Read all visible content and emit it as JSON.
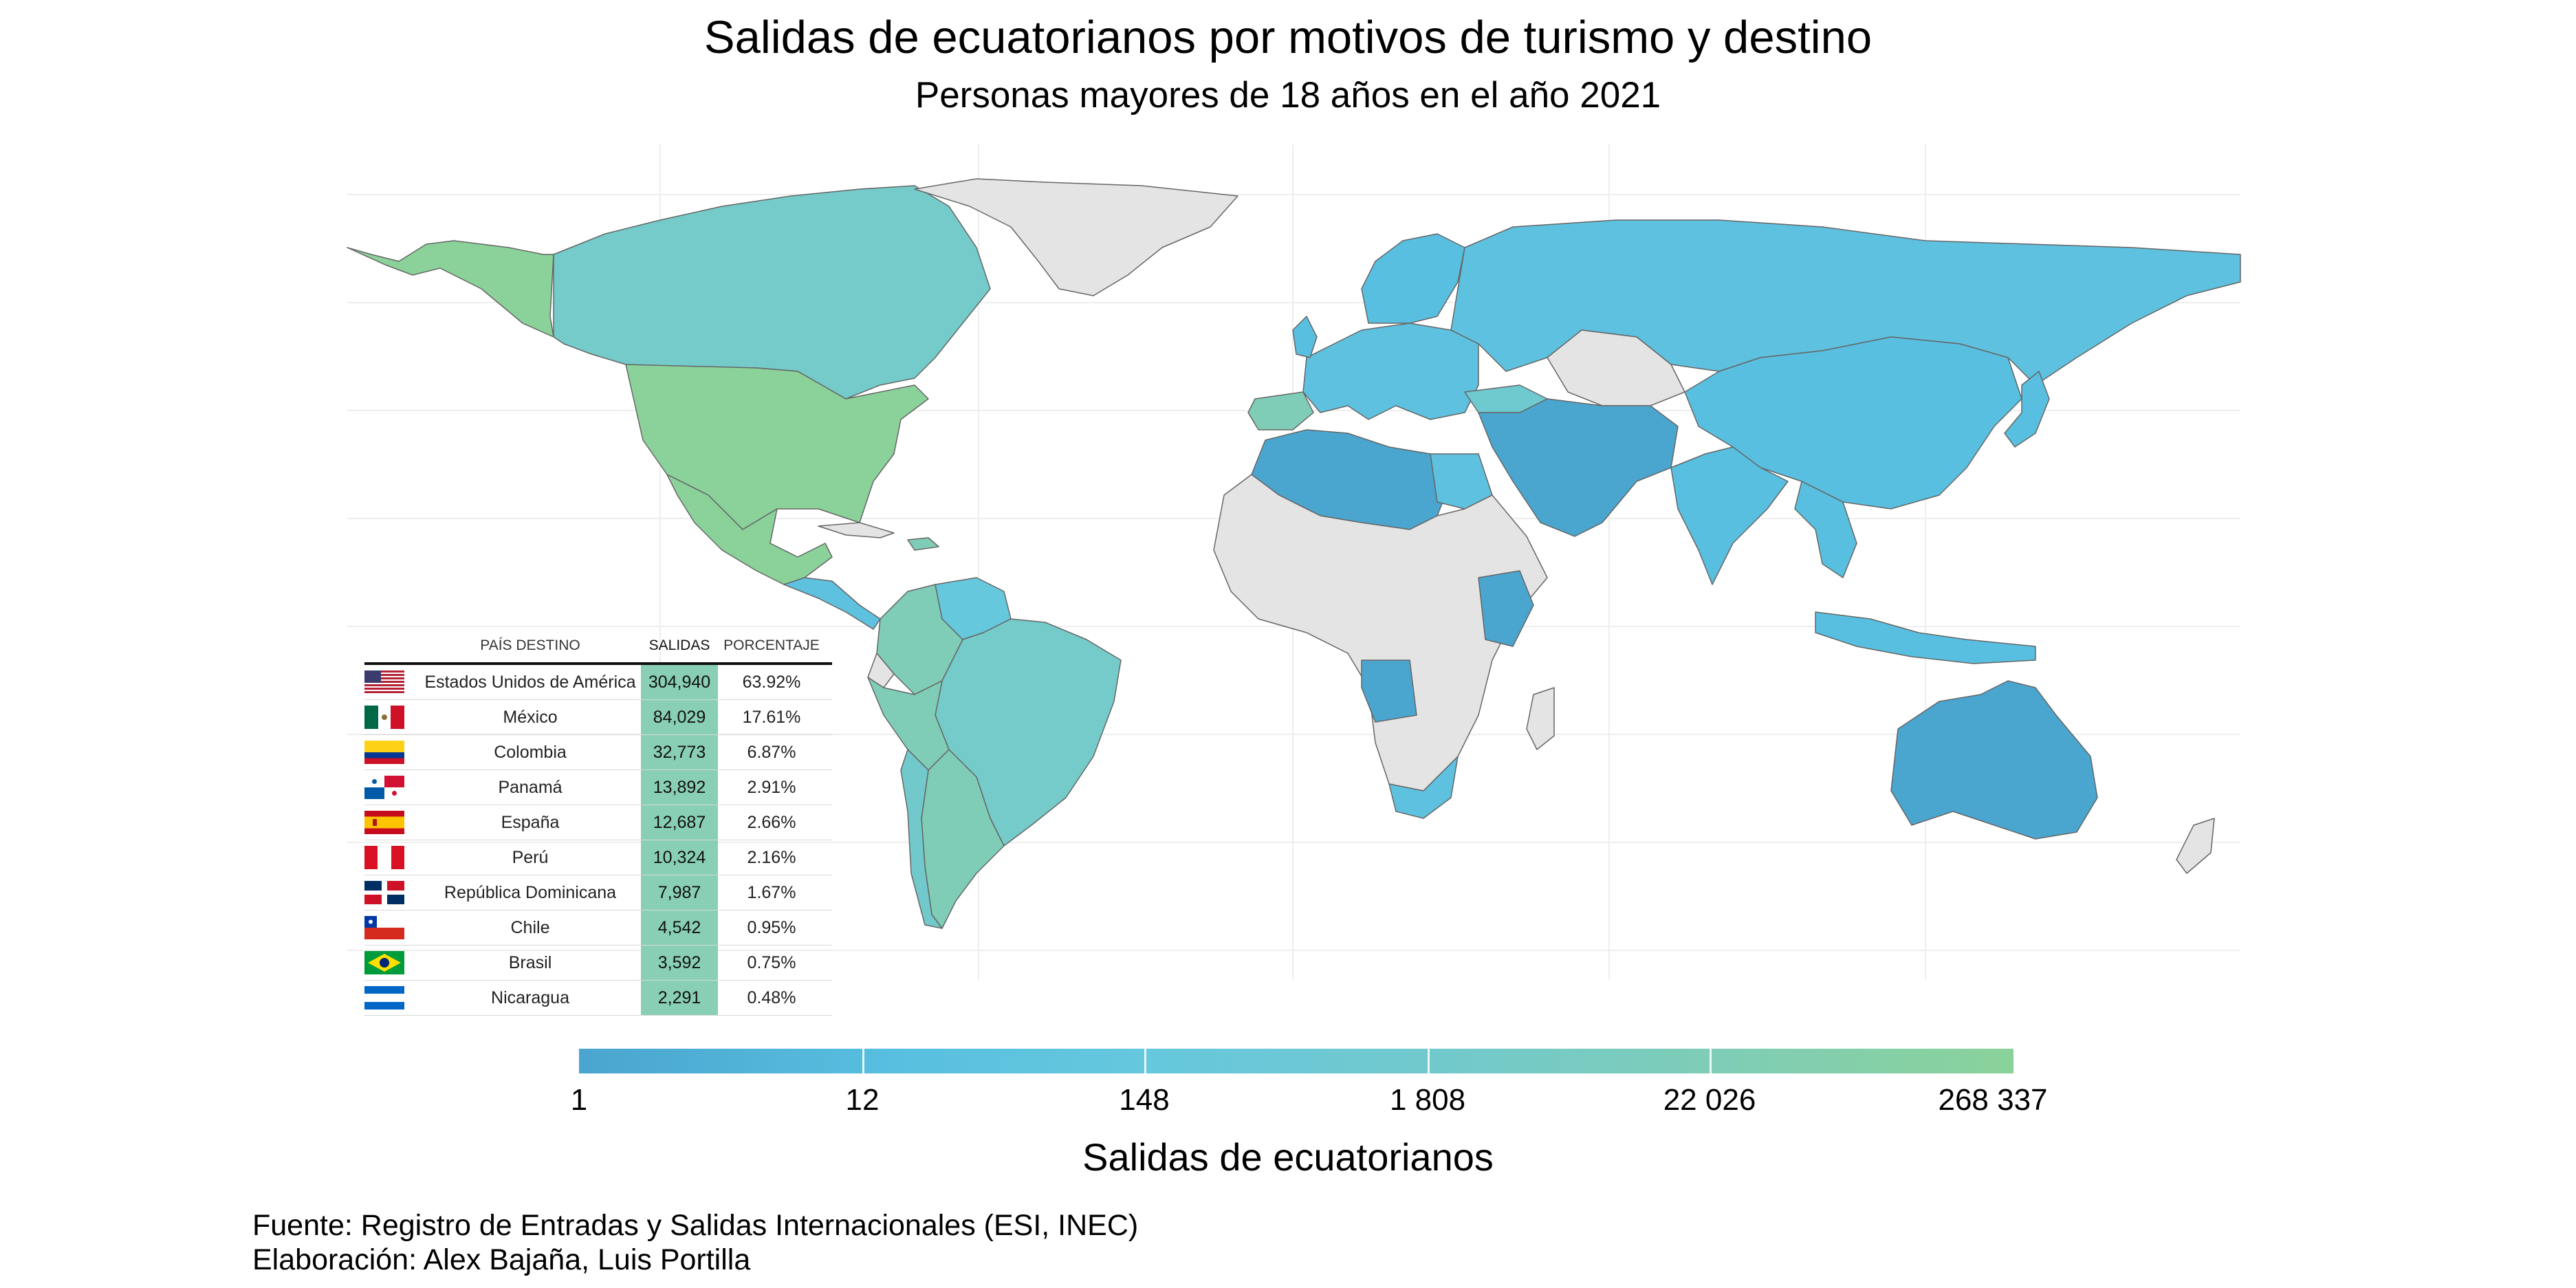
{
  "title": "Salidas de ecuatorianos por motivos de turismo y destino",
  "subtitle": "Personas mayores de 18 años en el año 2021",
  "table": {
    "headers": [
      "PAÍS DESTINO",
      "SALIDAS",
      "PORCENTAJE"
    ],
    "rows": [
      {
        "country": "Estados Unidos de América",
        "salidas": "304,940",
        "porcentaje": "63.92%",
        "flag": "usa-flag"
      },
      {
        "country": "México",
        "salidas": "84,029",
        "porcentaje": "17.61%",
        "flag": "mexico-flag"
      },
      {
        "country": "Colombia",
        "salidas": "32,773",
        "porcentaje": "6.87%",
        "flag": "colombia-flag"
      },
      {
        "country": "Panamá",
        "salidas": "13,892",
        "porcentaje": "2.91%",
        "flag": "panama-flag"
      },
      {
        "country": "España",
        "salidas": "12,687",
        "porcentaje": "2.66%",
        "flag": "spain-flag"
      },
      {
        "country": "Perú",
        "salidas": "10,324",
        "porcentaje": "2.16%",
        "flag": "peru-flag"
      },
      {
        "country": "República Dominicana",
        "salidas": "7,987",
        "porcentaje": "1.67%",
        "flag": "dominican-republic-flag"
      },
      {
        "country": "Chile",
        "salidas": "4,542",
        "porcentaje": "0.95%",
        "flag": "chile-flag"
      },
      {
        "country": "Brasil",
        "salidas": "3,592",
        "porcentaje": "0.75%",
        "flag": "brazil-flag"
      },
      {
        "country": "Nicaragua",
        "salidas": "2,291",
        "porcentaje": "0.48%",
        "flag": "nicaragua-flag"
      }
    ]
  },
  "legend": {
    "title": "Salidas de ecuatorianos",
    "ticks": [
      "1",
      "12",
      "148",
      "1 808",
      "22 026",
      "268 337"
    ],
    "colors": {
      "low": "#4aa5cf",
      "mid": "#66c8dd",
      "high": "#8ad29a",
      "no_data": "#e4e4e4"
    }
  },
  "caption": {
    "source": "Fuente: Registro de Entradas y Salidas Internacionales (ESI, INEC)",
    "credits": "Elaboración: Alex Bajaña, Luis Portilla"
  }
}
